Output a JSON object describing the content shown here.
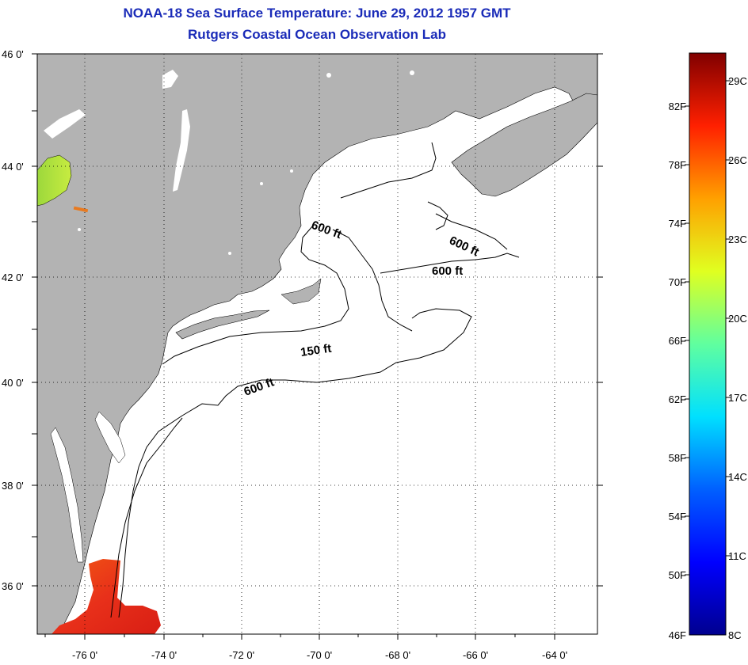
{
  "title": {
    "line1": "NOAA-18 Sea Surface Temperature:  June 29, 2012 1957 GMT",
    "line2": "Rutgers Coastal Ocean Observation Lab"
  },
  "map": {
    "lon_range": [
      -77,
      -63
    ],
    "lat_range": [
      35,
      46
    ],
    "lat_labels": [
      "46 0'",
      "44 0'",
      "42 0'",
      "40 0'",
      "38 0'",
      "36 0'"
    ],
    "lon_labels": [
      "-76 0'",
      "-74 0'",
      "-72 0'",
      "-70 0'",
      "-68 0'",
      "-66 0'",
      "-64 0'"
    ],
    "contour_labels": [
      {
        "text": "600 ft",
        "angle": 20
      },
      {
        "text": "600 ft",
        "angle": 25
      },
      {
        "text": "600 ft",
        "angle": 0
      },
      {
        "text": "150 ft",
        "angle": -8
      },
      {
        "text": "600 ft",
        "angle": -20
      }
    ],
    "colors": {
      "land": "#b3b3b3",
      "ocean": "#ffffff",
      "warm_patch": "#e8381a",
      "lake_patch": "#a6e03a"
    }
  },
  "colorbar": {
    "fahrenheit_labels": [
      "82F",
      "78F",
      "74F",
      "70F",
      "66F",
      "62F",
      "58F",
      "54F",
      "50F",
      "46F"
    ],
    "celsius_labels": [
      "29C",
      "26C",
      "23C",
      "20C",
      "17C",
      "14C",
      "11C",
      "8C"
    ],
    "colors": [
      "#00008f",
      "#0000ff",
      "#0080ff",
      "#00ffff",
      "#80ff80",
      "#ffff00",
      "#ff8000",
      "#ff0000",
      "#800000"
    ]
  }
}
